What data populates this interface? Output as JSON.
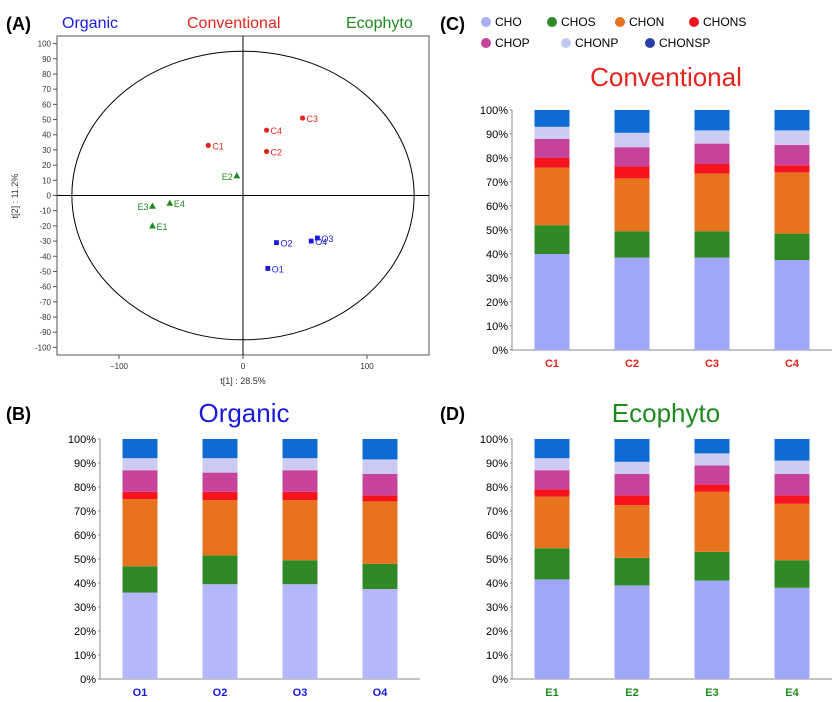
{
  "chart_data": [
    {
      "panel": "(A)",
      "type": "scatter",
      "group_labels": [
        {
          "text": "Organic",
          "color": "#1a1adc"
        },
        {
          "text": "Conventional",
          "color": "#e8231e"
        },
        {
          "text": "Ecophyto",
          "color": "#1f8a1f"
        }
      ],
      "xlabel": "t[1] : 28.5%",
      "ylabel": "t[2] : 11.2%",
      "xlim": [
        -150,
        150
      ],
      "ylim": [
        -105,
        105
      ],
      "xticks": [
        -100,
        0,
        100
      ],
      "yticks": [
        -100,
        -90,
        -80,
        -70,
        -60,
        -50,
        -40,
        -30,
        -20,
        -10,
        0,
        10,
        20,
        30,
        40,
        50,
        60,
        70,
        80,
        90,
        100
      ],
      "ellipse": {
        "rx": 138,
        "ry": 95
      },
      "series": [
        {
          "name": "Conventional",
          "marker": "circle",
          "color": "#e8231e",
          "points": [
            {
              "label": "C1",
              "x": -28,
              "y": 33
            },
            {
              "label": "C2",
              "x": 19,
              "y": 29
            },
            {
              "label": "C3",
              "x": 48,
              "y": 51
            },
            {
              "label": "C4",
              "x": 19,
              "y": 43
            }
          ]
        },
        {
          "name": "Ecophyto",
          "marker": "triangle",
          "color": "#1f8a1f",
          "points": [
            {
              "label": "E1",
              "x": -73,
              "y": -20
            },
            {
              "label": "E2",
              "x": -5,
              "y": 13
            },
            {
              "label": "E3",
              "x": -73,
              "y": -7
            },
            {
              "label": "E4",
              "x": -59,
              "y": -5
            }
          ]
        },
        {
          "name": "Organic",
          "marker": "square",
          "color": "#1a1adc",
          "points": [
            {
              "label": "O1",
              "x": 20,
              "y": -48
            },
            {
              "label": "O2",
              "x": 27,
              "y": -31
            },
            {
              "label": "O3",
              "x": 60,
              "y": -28
            },
            {
              "label": "O4",
              "x": 55,
              "y": -30
            }
          ]
        }
      ]
    },
    {
      "panel": "(B)",
      "type": "bar",
      "stacked": true,
      "title": "Organic",
      "title_color": "#1a1adc",
      "categories": [
        "O1",
        "O2",
        "O3",
        "O4"
      ],
      "category_color": "#1a1adc",
      "yticks": [
        "0%",
        "10%",
        "20%",
        "30%",
        "40%",
        "50%",
        "60%",
        "70%",
        "80%",
        "90%",
        "100%"
      ],
      "series": [
        {
          "name": "CHO",
          "color": "#b4b8fb",
          "values": [
            36,
            39.5,
            39.5,
            37.5
          ]
        },
        {
          "name": "CHOS",
          "color": "#2f8a26",
          "values": [
            11,
            12,
            10,
            10.5
          ]
        },
        {
          "name": "CHON",
          "color": "#e8731e",
          "values": [
            28,
            23,
            25,
            26
          ]
        },
        {
          "name": "CHONS",
          "color": "#f5141e",
          "values": [
            3,
            3.5,
            3.5,
            2.5
          ]
        },
        {
          "name": "CHOP",
          "color": "#c7439b",
          "values": [
            9,
            8,
            9,
            9
          ]
        },
        {
          "name": "CHONP",
          "color": "#ccccf2",
          "values": [
            5,
            6,
            5,
            6
          ]
        },
        {
          "name": "CHONSP",
          "color": "#0f6ad4",
          "values": [
            8,
            8,
            8,
            8.5
          ]
        }
      ]
    },
    {
      "panel": "(C)",
      "type": "bar",
      "stacked": true,
      "title": "Conventional",
      "title_color": "#e8231e",
      "legend": [
        {
          "name": "CHO",
          "color": "#a8b0f2"
        },
        {
          "name": "CHOS",
          "color": "#2f8a26"
        },
        {
          "name": "CHON",
          "color": "#e8731e"
        },
        {
          "name": "CHONS",
          "color": "#f5141e"
        },
        {
          "name": "CHOP",
          "color": "#c7439b"
        },
        {
          "name": "CHONP",
          "color": "#c4c8ef"
        },
        {
          "name": "CHONSP",
          "color": "#2a3ea8"
        }
      ],
      "categories": [
        "C1",
        "C2",
        "C3",
        "C4"
      ],
      "category_color": "#e8231e",
      "yticks": [
        "0%",
        "10%",
        "20%",
        "30%",
        "40%",
        "50%",
        "60%",
        "70%",
        "80%",
        "90%",
        "100%"
      ],
      "series": [
        {
          "name": "CHO",
          "color": "#a0a6f8",
          "values": [
            40,
            38.5,
            38.5,
            37.5
          ]
        },
        {
          "name": "CHOS",
          "color": "#2f8a26",
          "values": [
            12,
            11,
            11,
            11
          ]
        },
        {
          "name": "CHON",
          "color": "#e8731e",
          "values": [
            24,
            22,
            24,
            25.5
          ]
        },
        {
          "name": "CHONS",
          "color": "#f5141e",
          "values": [
            4,
            5,
            4,
            3
          ]
        },
        {
          "name": "CHOP",
          "color": "#c7439b",
          "values": [
            8,
            8,
            8.5,
            8.5
          ]
        },
        {
          "name": "CHONP",
          "color": "#ccccf2",
          "values": [
            5,
            6,
            5.5,
            6
          ]
        },
        {
          "name": "CHONSP",
          "color": "#0f6ad4",
          "values": [
            7,
            9.5,
            8.5,
            8.5
          ]
        }
      ]
    },
    {
      "panel": "(D)",
      "type": "bar",
      "stacked": true,
      "title": "Ecophyto",
      "title_color": "#1f8a1f",
      "categories": [
        "E1",
        "E2",
        "E3",
        "E4"
      ],
      "category_color": "#1f8a1f",
      "yticks": [
        "0%",
        "10%",
        "20%",
        "30%",
        "40%",
        "50%",
        "60%",
        "70%",
        "80%",
        "90%",
        "100%"
      ],
      "series": [
        {
          "name": "CHO",
          "color": "#a0a6f8",
          "values": [
            41.5,
            39,
            41,
            38
          ]
        },
        {
          "name": "CHOS",
          "color": "#2f8a26",
          "values": [
            13,
            11.5,
            12,
            11.5
          ]
        },
        {
          "name": "CHON",
          "color": "#e8731e",
          "values": [
            21.5,
            22,
            25,
            23.5
          ]
        },
        {
          "name": "CHONS",
          "color": "#f5141e",
          "values": [
            3,
            4,
            3,
            3.5
          ]
        },
        {
          "name": "CHOP",
          "color": "#c7439b",
          "values": [
            8,
            9,
            8,
            9
          ]
        },
        {
          "name": "CHONP",
          "color": "#ccccf2",
          "values": [
            5,
            5,
            5,
            5.5
          ]
        },
        {
          "name": "CHONSP",
          "color": "#0f6ad4",
          "values": [
            8,
            9.5,
            6,
            9
          ]
        }
      ]
    }
  ]
}
